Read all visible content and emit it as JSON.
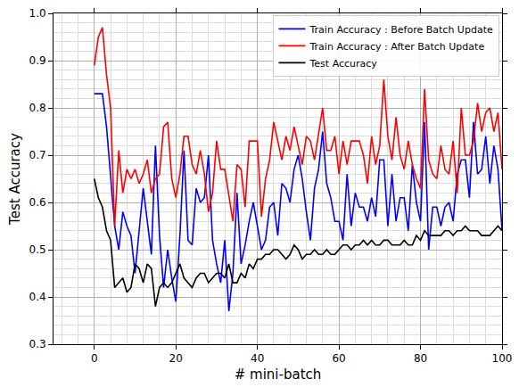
{
  "chart_data": {
    "type": "line",
    "x_label": "# mini-batch",
    "y_label": "Test Accuracy",
    "xlim": [
      -10,
      100
    ],
    "xticks": [
      0,
      20,
      40,
      60,
      80,
      100
    ],
    "ylim": [
      0.3,
      1.0
    ],
    "yticks": [
      0.3,
      0.4,
      0.5,
      0.6,
      0.7,
      0.8,
      0.9,
      {
        "value": 1,
        "label": "1.0"
      }
    ],
    "grid": true,
    "legend": "upper right",
    "x": [
      0,
      1,
      2,
      3,
      4,
      5,
      6,
      7,
      8,
      9,
      10,
      11,
      12,
      13,
      14,
      15,
      16,
      17,
      18,
      19,
      20,
      21,
      22,
      23,
      24,
      25,
      26,
      27,
      28,
      29,
      30,
      31,
      32,
      33,
      34,
      35,
      36,
      37,
      38,
      39,
      40,
      41,
      42,
      43,
      44,
      45,
      46,
      47,
      48,
      49,
      50,
      51,
      52,
      53,
      54,
      55,
      56,
      57,
      58,
      59,
      60,
      61,
      62,
      63,
      64,
      65,
      66,
      67,
      68,
      69,
      70,
      71,
      72,
      73,
      74,
      75,
      76,
      77,
      78,
      79,
      80,
      81,
      82,
      83,
      84,
      85,
      86,
      87,
      88,
      89,
      90,
      91,
      92,
      93,
      94,
      95,
      96,
      97,
      98,
      99,
      100
    ],
    "series": [
      {
        "name": "Train Accuracy : Before Batch Update",
        "color": "#0000ff",
        "values": [
          0.83,
          0.83,
          0.83,
          0.76,
          0.65,
          0.55,
          0.5,
          0.58,
          0.55,
          0.53,
          0.45,
          0.54,
          0.63,
          0.56,
          0.49,
          0.72,
          0.53,
          0.42,
          0.5,
          0.44,
          0.39,
          0.53,
          0.71,
          0.52,
          0.51,
          0.63,
          0.6,
          0.61,
          0.7,
          0.52,
          0.47,
          0.43,
          0.52,
          0.37,
          0.45,
          0.62,
          0.47,
          0.51,
          0.56,
          0.6,
          0.55,
          0.5,
          0.52,
          0.59,
          0.6,
          0.53,
          0.64,
          0.63,
          0.6,
          0.67,
          0.7,
          0.65,
          0.58,
          0.52,
          0.63,
          0.67,
          0.75,
          0.64,
          0.61,
          0.56,
          0.56,
          0.52,
          0.66,
          0.55,
          0.62,
          0.59,
          0.59,
          0.56,
          0.61,
          0.57,
          0.69,
          0.69,
          0.55,
          0.66,
          0.56,
          0.61,
          0.61,
          0.54,
          0.68,
          0.6,
          0.56,
          0.77,
          0.5,
          0.59,
          0.59,
          0.55,
          0.59,
          0.6,
          0.56,
          0.66,
          0.69,
          0.69,
          0.61,
          0.77,
          0.66,
          0.67,
          0.74,
          0.64,
          0.72,
          0.67,
          0.54
        ]
      },
      {
        "name": "Train Accuracy : After Batch Update",
        "color": "#ff0000",
        "values": [
          0.89,
          0.95,
          0.97,
          0.87,
          0.8,
          0.55,
          0.71,
          0.62,
          0.67,
          0.65,
          0.67,
          0.64,
          0.66,
          0.69,
          0.62,
          0.65,
          0.66,
          0.76,
          0.77,
          0.65,
          0.61,
          0.66,
          0.74,
          0.74,
          0.68,
          0.66,
          0.71,
          0.66,
          0.58,
          0.62,
          0.73,
          0.67,
          0.67,
          0.61,
          0.56,
          0.68,
          0.67,
          0.59,
          0.73,
          0.73,
          0.73,
          0.57,
          0.65,
          0.69,
          0.77,
          0.73,
          0.69,
          0.74,
          0.71,
          0.76,
          0.72,
          0.68,
          0.74,
          0.73,
          0.69,
          0.75,
          0.8,
          0.71,
          0.71,
          0.74,
          0.66,
          0.73,
          0.68,
          0.73,
          0.73,
          0.73,
          0.7,
          0.64,
          0.74,
          0.68,
          0.72,
          0.86,
          0.74,
          0.69,
          0.78,
          0.7,
          0.67,
          0.73,
          0.68,
          0.65,
          0.63,
          0.84,
          0.69,
          0.66,
          0.65,
          0.72,
          0.67,
          0.66,
          0.73,
          0.62,
          0.8,
          0.7,
          0.7,
          0.73,
          0.81,
          0.75,
          0.79,
          0.8,
          0.75,
          0.79,
          0.67
        ]
      },
      {
        "name": "Test Accuracy",
        "color": "#000000",
        "values": [
          0.65,
          0.61,
          0.59,
          0.54,
          0.52,
          0.42,
          0.43,
          0.44,
          0.41,
          0.42,
          0.47,
          0.46,
          0.43,
          0.47,
          0.46,
          0.38,
          0.42,
          0.43,
          0.42,
          0.43,
          0.45,
          0.47,
          0.44,
          0.43,
          0.42,
          0.44,
          0.45,
          0.45,
          0.43,
          0.44,
          0.45,
          0.45,
          0.44,
          0.47,
          0.43,
          0.43,
          0.45,
          0.44,
          0.47,
          0.46,
          0.48,
          0.48,
          0.49,
          0.49,
          0.5,
          0.5,
          0.49,
          0.48,
          0.49,
          0.51,
          0.5,
          0.48,
          0.49,
          0.49,
          0.5,
          0.49,
          0.49,
          0.5,
          0.49,
          0.49,
          0.5,
          0.51,
          0.51,
          0.5,
          0.51,
          0.51,
          0.52,
          0.51,
          0.52,
          0.51,
          0.51,
          0.52,
          0.52,
          0.51,
          0.51,
          0.51,
          0.52,
          0.51,
          0.51,
          0.53,
          0.52,
          0.54,
          0.53,
          0.53,
          0.53,
          0.53,
          0.54,
          0.54,
          0.53,
          0.54,
          0.54,
          0.55,
          0.54,
          0.54,
          0.54,
          0.53,
          0.53,
          0.53,
          0.54,
          0.55,
          0.54
        ]
      }
    ]
  }
}
